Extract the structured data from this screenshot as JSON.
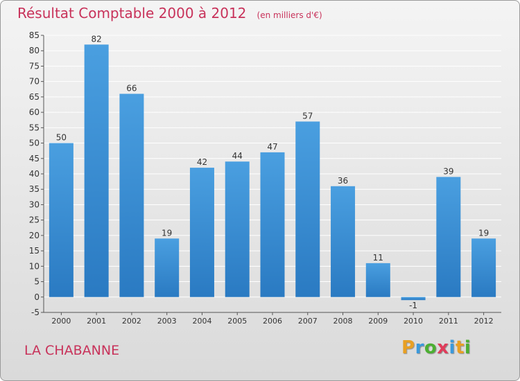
{
  "title": "Résultat Comptable 2000 à 2012",
  "unit": "(en milliers d'€)",
  "commune": "LA CHABANNE",
  "logo": {
    "letters": [
      "P",
      "r",
      "o",
      "x",
      "i",
      "t",
      "i"
    ],
    "colors": [
      "#e8a024",
      "#3b9adc",
      "#4caf32",
      "#e03c5a",
      "#3b9adc",
      "#e8a024",
      "#4caf32"
    ]
  },
  "colors": {
    "bar": "#4a9fe0",
    "bar_dark": "#2a7ac2",
    "title": "#c8325a"
  },
  "chart_data": {
    "type": "bar",
    "title": "Résultat Comptable 2000 à 2012",
    "categories": [
      "2000",
      "2001",
      "2002",
      "2003",
      "2004",
      "2005",
      "2006",
      "2007",
      "2008",
      "2009",
      "2010",
      "2011",
      "2012"
    ],
    "values": [
      50,
      82,
      66,
      19,
      42,
      44,
      47,
      57,
      36,
      11,
      -1,
      39,
      19
    ],
    "value_labels": [
      "50",
      "82",
      "66",
      "19",
      "42",
      "44",
      "47",
      "57",
      "36",
      "11",
      "-1",
      "39",
      "19"
    ],
    "ylim": [
      -5,
      85
    ],
    "yticks": [
      "-5",
      "0",
      "5",
      "10",
      "15",
      "20",
      "25",
      "30",
      "35",
      "40",
      "45",
      "50",
      "55",
      "60",
      "65",
      "70",
      "75",
      "80",
      "85"
    ],
    "grid": true,
    "xlabel": "",
    "ylabel": ""
  }
}
